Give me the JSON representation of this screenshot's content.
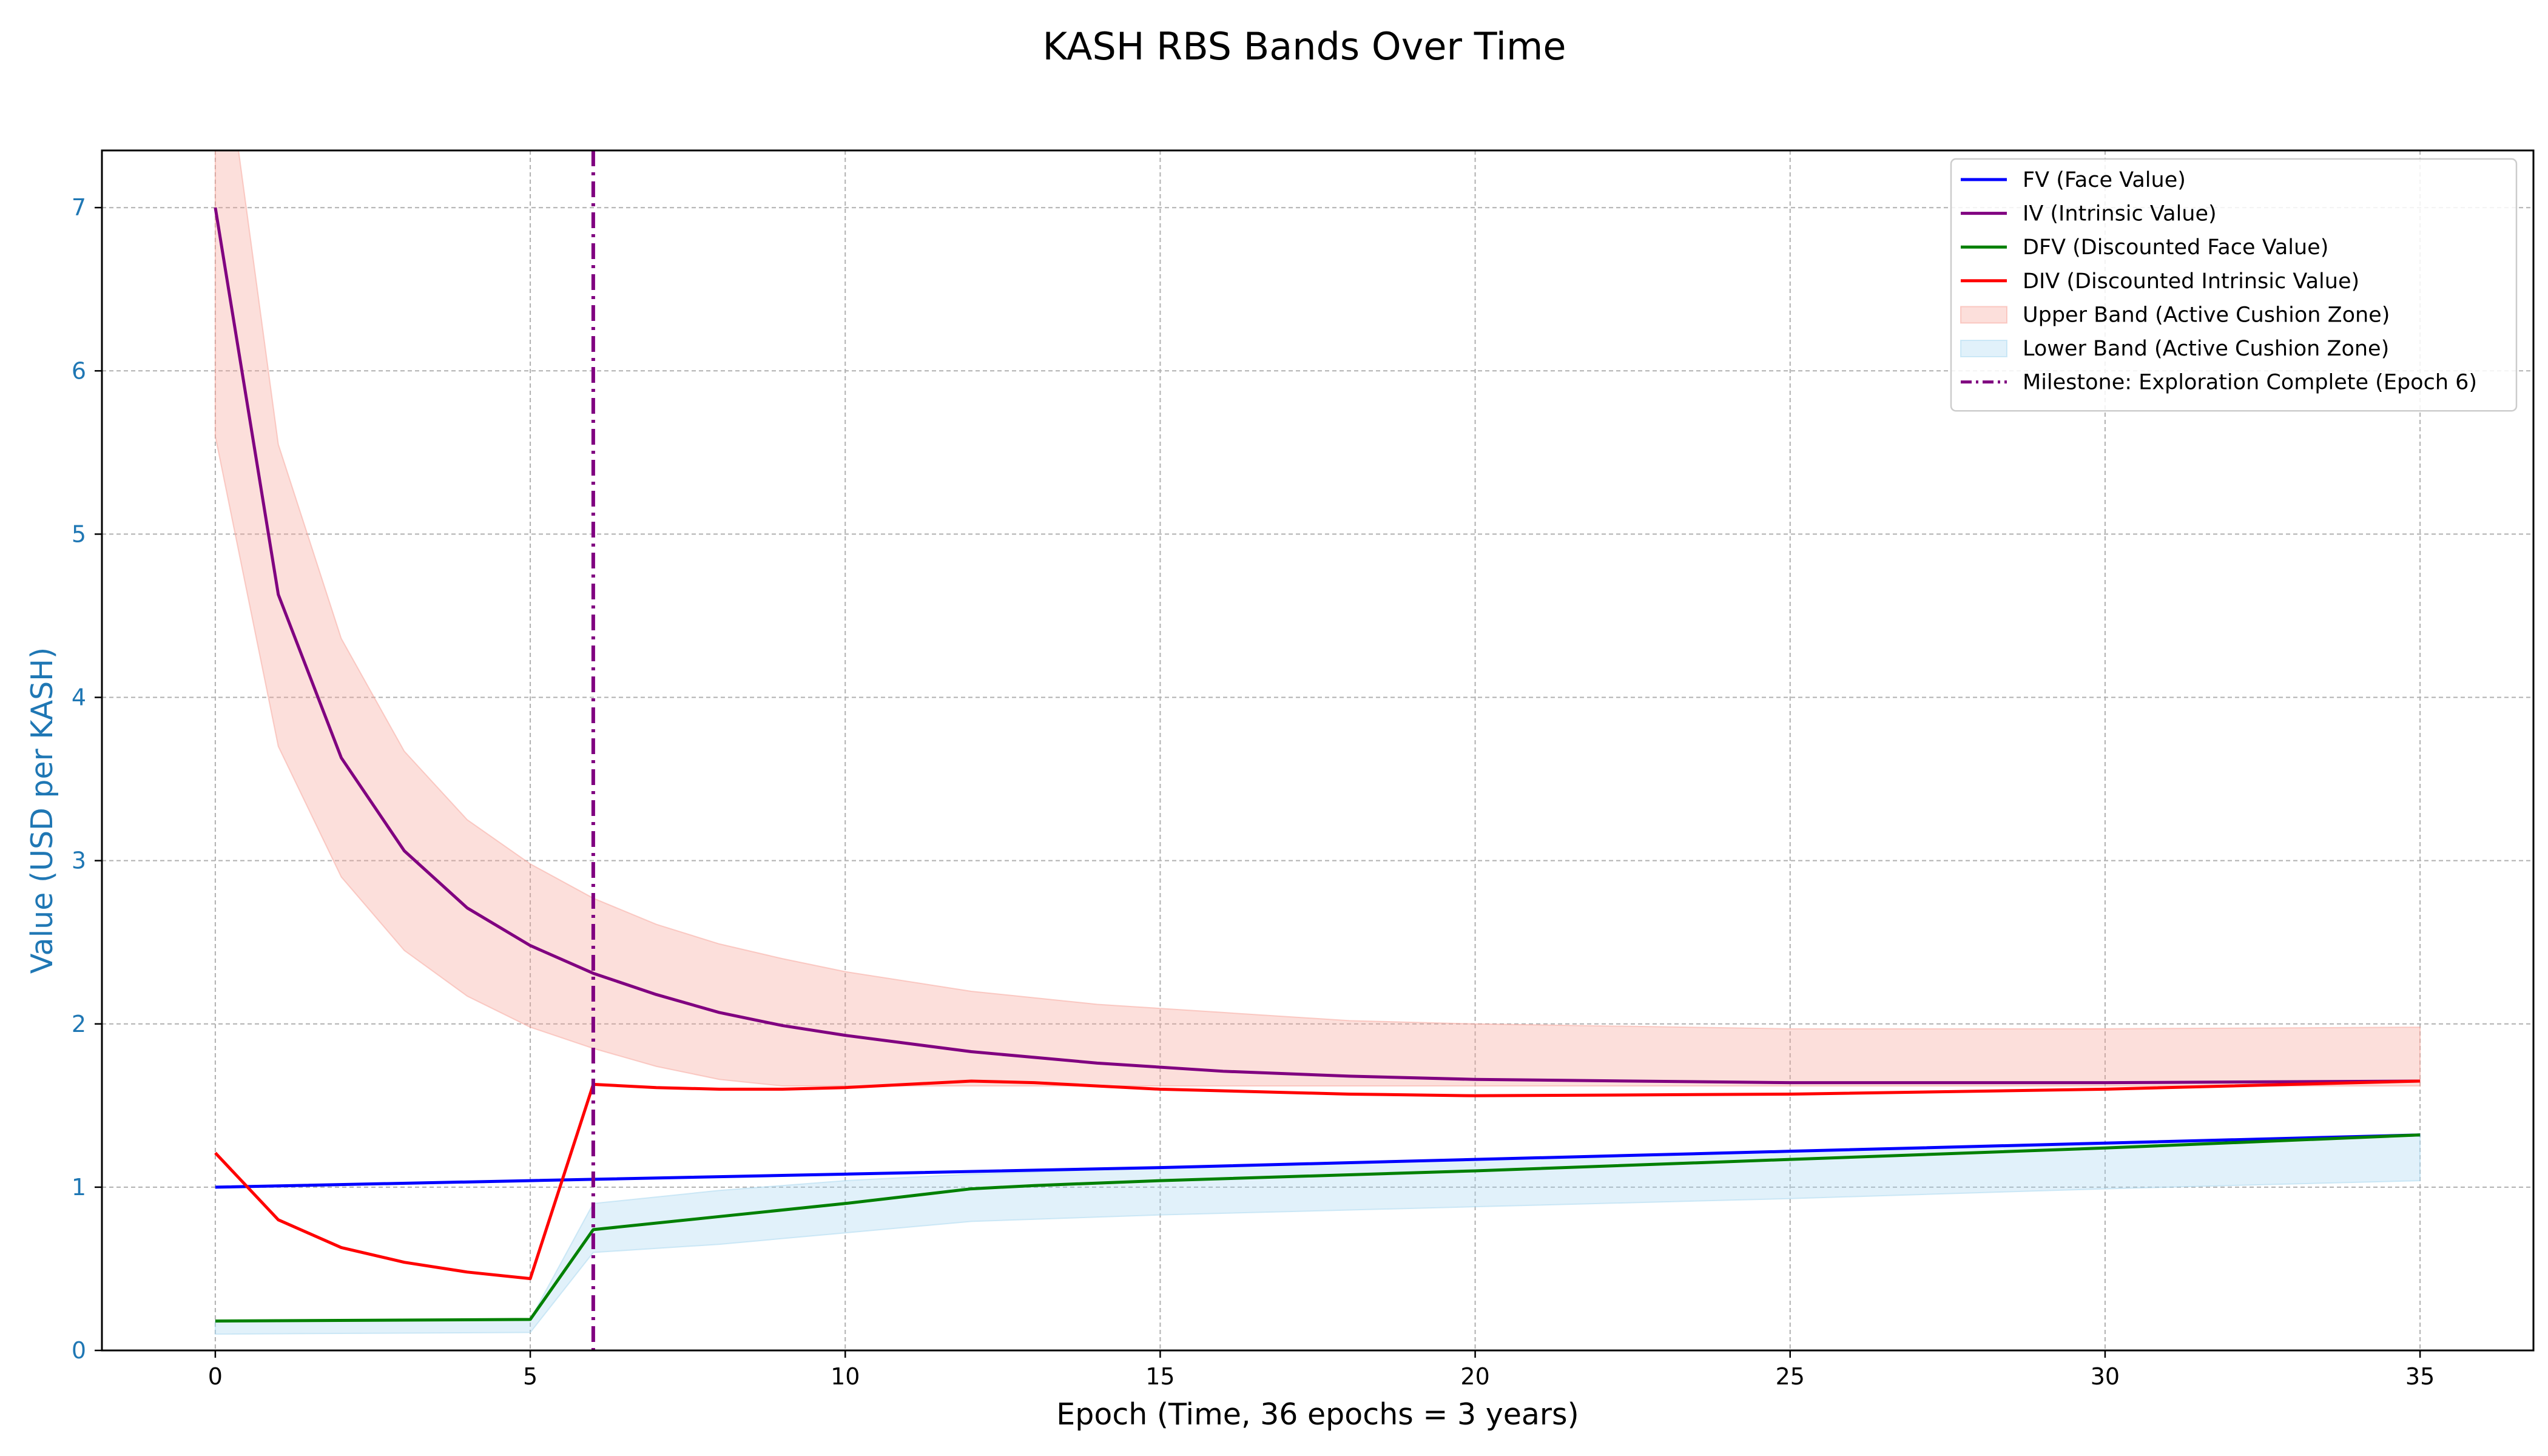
{
  "chart_data": {
    "type": "line",
    "title": "KASH RBS Bands Over Time",
    "xlabel": "Epoch (Time, 36 epochs = 3 years)",
    "ylabel": "Value (USD per KASH)",
    "xlim": [
      -1.8,
      36.8
    ],
    "ylim": [
      0,
      7.35
    ],
    "xticks": [
      0,
      5,
      10,
      15,
      20,
      25,
      30,
      35
    ],
    "yticks": [
      0,
      1,
      2,
      3,
      4,
      5,
      6,
      7
    ],
    "grid": true,
    "legend_position": "top-right",
    "colors": {
      "fv": "#0000ff",
      "iv": "#800080",
      "dfv": "#008000",
      "div": "#ff0000",
      "upper_band": "#f7a399",
      "lower_band": "#a8d8f0",
      "ylabel_color": "#1f77b4",
      "milestone": "#800080"
    },
    "series": [
      {
        "name": "FV (Face Value)",
        "key": "fv",
        "x": [
          0,
          5,
          10,
          15,
          20,
          25,
          30,
          35
        ],
        "y": [
          1.0,
          1.04,
          1.08,
          1.12,
          1.17,
          1.22,
          1.27,
          1.32
        ]
      },
      {
        "name": "IV (Intrinsic Value)",
        "key": "iv",
        "x": [
          0,
          1,
          2,
          3,
          4,
          5,
          6,
          7,
          8,
          9,
          10,
          12,
          14,
          16,
          18,
          20,
          25,
          30,
          35
        ],
        "y": [
          7.0,
          4.63,
          3.63,
          3.06,
          2.71,
          2.48,
          2.31,
          2.18,
          2.07,
          1.99,
          1.93,
          1.83,
          1.76,
          1.71,
          1.68,
          1.66,
          1.64,
          1.64,
          1.65
        ]
      },
      {
        "name": "DFV (Discounted Face Value)",
        "key": "dfv",
        "x": [
          0,
          5,
          6,
          8,
          10,
          12,
          13,
          15,
          20,
          25,
          30,
          35
        ],
        "y": [
          0.18,
          0.19,
          0.74,
          0.82,
          0.9,
          0.99,
          1.01,
          1.04,
          1.1,
          1.17,
          1.24,
          1.32
        ]
      },
      {
        "name": "DIV (Discounted Intrinsic Value)",
        "key": "div",
        "x": [
          0,
          1,
          2,
          3,
          4,
          5,
          6,
          7,
          8,
          9,
          10,
          12,
          13,
          15,
          18,
          20,
          25,
          30,
          35
        ],
        "y": [
          1.21,
          0.8,
          0.63,
          0.54,
          0.48,
          0.44,
          1.63,
          1.61,
          1.6,
          1.6,
          1.61,
          1.65,
          1.64,
          1.6,
          1.57,
          1.56,
          1.57,
          1.6,
          1.65
        ]
      }
    ],
    "bands": [
      {
        "name": "Upper Band (Active Cushion Zone)",
        "key": "upper_band",
        "x": [
          0,
          1,
          2,
          3,
          4,
          5,
          6,
          7,
          8,
          9,
          10,
          12,
          14,
          16,
          18,
          20,
          25,
          30,
          35
        ],
        "upper": [
          8.4,
          5.55,
          4.36,
          3.67,
          3.25,
          2.98,
          2.77,
          2.61,
          2.49,
          2.4,
          2.32,
          2.2,
          2.12,
          2.07,
          2.02,
          2.0,
          1.97,
          1.97,
          1.98
        ],
        "lower": [
          5.6,
          3.7,
          2.9,
          2.45,
          2.17,
          1.98,
          1.85,
          1.74,
          1.66,
          1.62,
          1.62,
          1.62,
          1.62,
          1.62,
          1.62,
          1.62,
          1.62,
          1.62,
          1.62
        ]
      },
      {
        "name": "Lower Band (Active Cushion Zone)",
        "key": "lower_band",
        "x": [
          0,
          5,
          6,
          8,
          10,
          12,
          15,
          20,
          25,
          30,
          35
        ],
        "upper": [
          0.18,
          0.19,
          0.9,
          0.98,
          1.04,
          1.08,
          1.12,
          1.17,
          1.22,
          1.27,
          1.32
        ],
        "lower": [
          0.1,
          0.11,
          0.6,
          0.65,
          0.72,
          0.79,
          0.83,
          0.88,
          0.93,
          0.99,
          1.04
        ]
      }
    ],
    "milestone": {
      "name": "Milestone: Exploration Complete (Epoch 6)",
      "x": 6
    }
  }
}
